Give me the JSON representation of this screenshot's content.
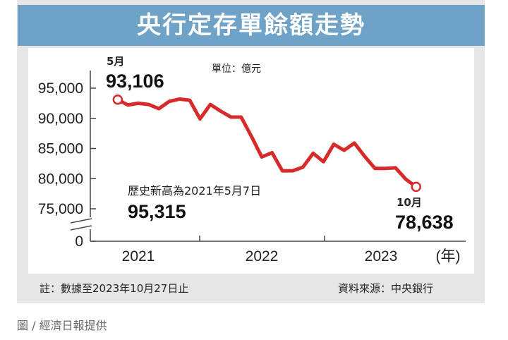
{
  "title": "央行定存單餘額走勢",
  "unit_label": "單位：億元",
  "footnote": "註：數據至2023年10月27日止",
  "source": "資料來源：中央銀行",
  "credit": "圖 / 經濟日報提供",
  "colors": {
    "banner": "#6fa2c7",
    "line": "#d72a2a",
    "panel": "#e7e6e6"
  },
  "start_label": {
    "month": "5月",
    "value": "93,106"
  },
  "end_label": {
    "month": "10月",
    "value": "78,638"
  },
  "record_note": {
    "text": "歷史新高為2021年5月7日",
    "value": "95,315"
  },
  "chart_data": {
    "type": "line",
    "title": "央行定存單餘額走勢",
    "ylabel": "單位：億元",
    "xlabel": "",
    "y_ticks": [
      0,
      75000,
      80000,
      85000,
      90000,
      95000
    ],
    "y_tick_labels": [
      "0",
      "75,000",
      "80,000",
      "85,000",
      "90,000",
      "95,000"
    ],
    "x_tick_labels": [
      "2021",
      "2022",
      "2023",
      "(年)"
    ],
    "axis_break": true,
    "series": [
      {
        "x": [
          "2021-05",
          "2021-06",
          "2021-07",
          "2021-08",
          "2021-09",
          "2021-10",
          "2021-11",
          "2021-12",
          "2022-01",
          "2022-02",
          "2022-03",
          "2022-04",
          "2022-05",
          "2022-06",
          "2022-07",
          "2022-08",
          "2022-09",
          "2022-10",
          "2022-11",
          "2022-12",
          "2023-01",
          "2023-02",
          "2023-03",
          "2023-04",
          "2023-05",
          "2023-06",
          "2023-07",
          "2023-08",
          "2023-09",
          "2023-10"
        ],
        "values": [
          93106,
          92200,
          92500,
          92300,
          91600,
          92800,
          93200,
          93000,
          89900,
          92300,
          91200,
          90200,
          90200,
          87000,
          83600,
          84300,
          81300,
          81300,
          81900,
          84200,
          82800,
          85700,
          84700,
          85900,
          83700,
          81700,
          81700,
          81800,
          79900,
          78638
        ]
      }
    ]
  }
}
